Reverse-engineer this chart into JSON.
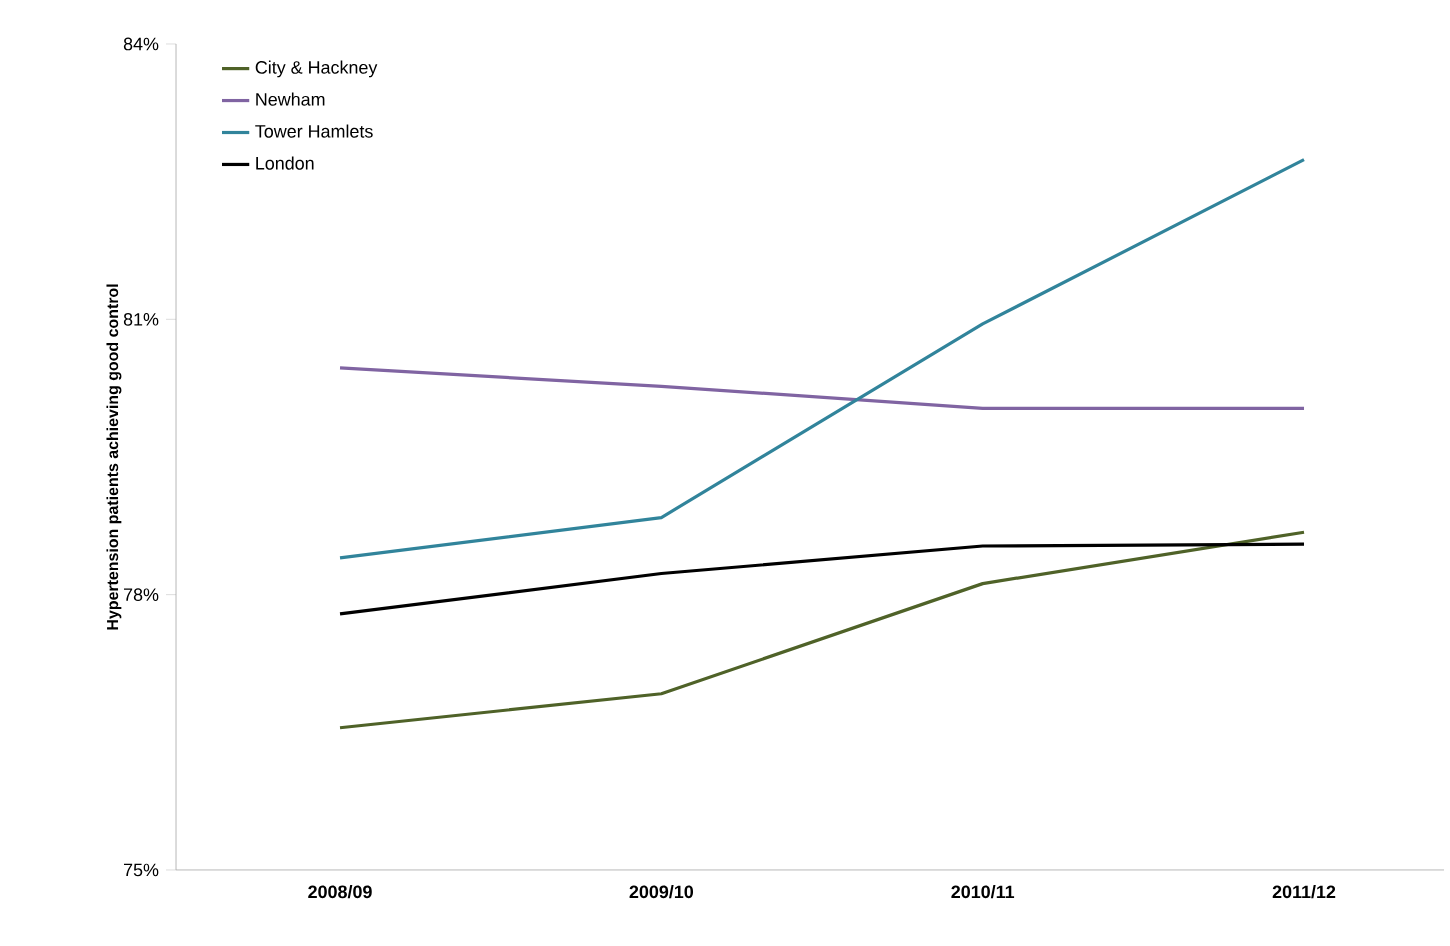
{
  "chart_data": {
    "type": "line",
    "ylabel": "Hypertension patients achieving good control",
    "categories": [
      "2008/09",
      "2009/10",
      "2010/11",
      "2011/12"
    ],
    "series": [
      {
        "name": "City & Hackney",
        "color": "#4f6228",
        "values": [
          76.55,
          76.92,
          78.12,
          78.68
        ]
      },
      {
        "name": "Newham",
        "color": "#8064a2",
        "values": [
          80.47,
          80.27,
          80.03,
          80.03
        ]
      },
      {
        "name": "Tower Hamlets",
        "color": "#31849b",
        "values": [
          78.4,
          78.84,
          80.95,
          82.74
        ]
      },
      {
        "name": "London",
        "color": "#000000",
        "values": [
          77.79,
          78.23,
          78.53,
          78.55
        ]
      }
    ],
    "ylim": [
      75,
      84
    ],
    "yticks": [
      {
        "value": 75,
        "label": "75%"
      },
      {
        "value": 78,
        "label": "78%"
      },
      {
        "value": 81,
        "label": "81%"
      },
      {
        "value": 84,
        "label": "84%"
      }
    ],
    "grid": false,
    "legend": "top left",
    "marker": "none",
    "line_style": "solid"
  }
}
